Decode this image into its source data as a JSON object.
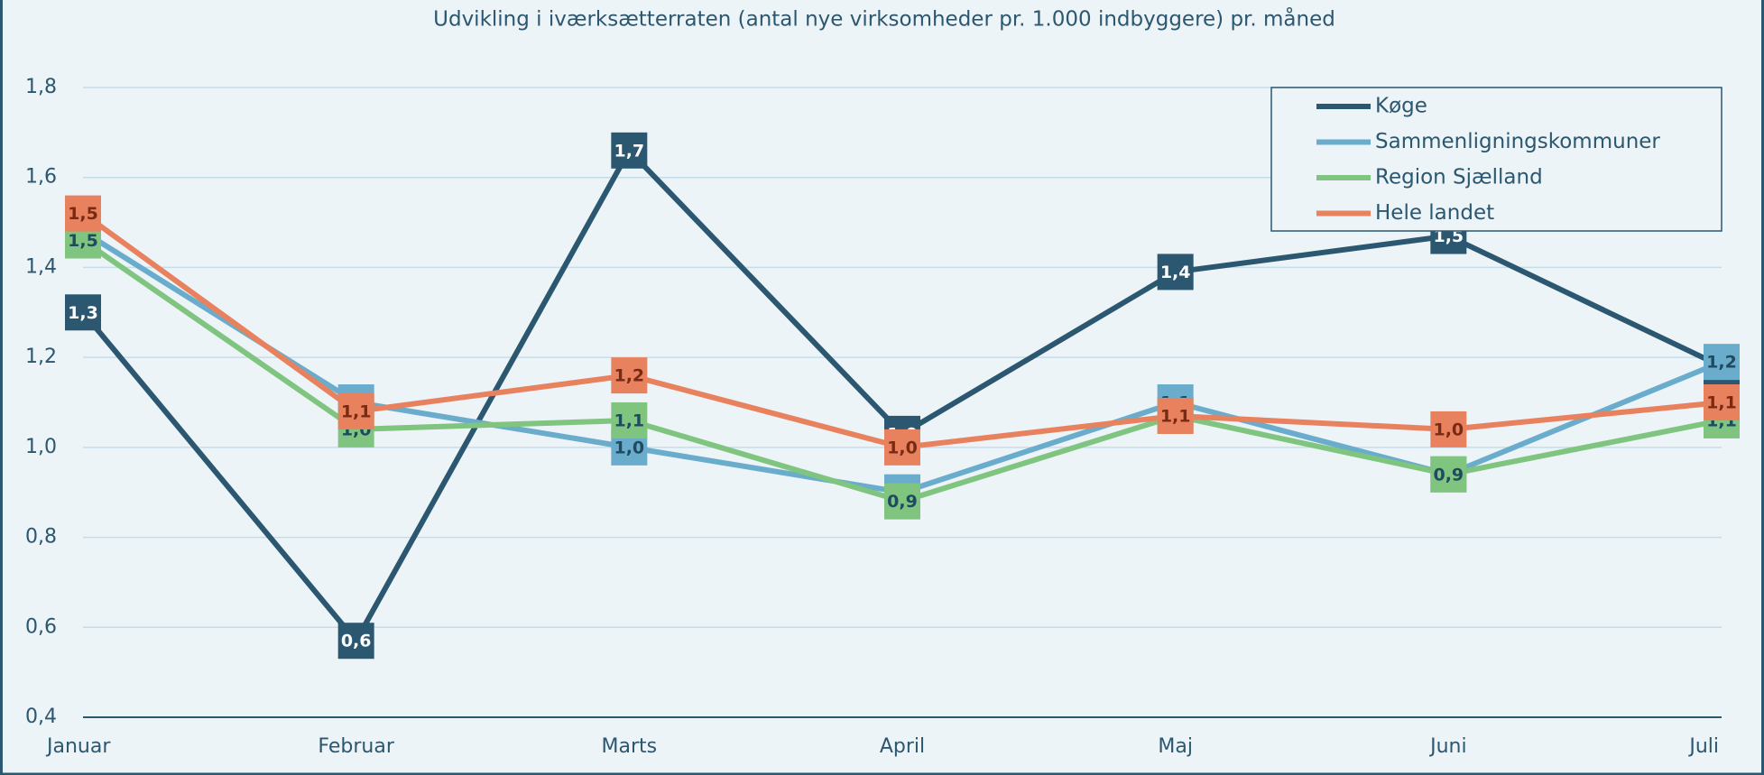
{
  "chart_data": {
    "type": "line",
    "title": "Udvikling i iværksætterraten (antal nye virksomheder pr. 1.000 indbyggere) pr. måned",
    "categories": [
      "Januar",
      "Februar",
      "Marts",
      "April",
      "Maj",
      "Juni",
      "Juli"
    ],
    "series": [
      {
        "name": "Køge",
        "color": "#2b5770",
        "values": [
          1.3,
          0.57,
          1.66,
          1.03,
          1.39,
          1.47,
          1.18
        ],
        "value_labels": [
          "1,3",
          "0,6",
          "1,7",
          "1,0",
          "1,4",
          "1,5",
          "1,2"
        ]
      },
      {
        "name": "Sammenligningskommuner",
        "color": "#6aaccc",
        "values": [
          1.48,
          1.1,
          1.0,
          0.9,
          1.1,
          0.94,
          1.19
        ],
        "value_labels": [
          "1,5",
          "1,1",
          "1,0",
          "0,9",
          "1,1",
          "0,9",
          "1,2"
        ]
      },
      {
        "name": "Region Sjælland",
        "color": "#7fc47f",
        "values": [
          1.46,
          1.04,
          1.06,
          0.88,
          1.07,
          0.94,
          1.06
        ],
        "value_labels": [
          "1,5",
          "1,0",
          "1,1",
          "0,9",
          "1,1",
          "0,9",
          "1,1"
        ]
      },
      {
        "name": "Hele landet",
        "color": "#e8825e",
        "values": [
          1.52,
          1.08,
          1.16,
          1.0,
          1.07,
          1.04,
          1.1
        ],
        "value_labels": [
          "1,5",
          "1,1",
          "1,2",
          "1,0",
          "1,1",
          "1,0",
          "1,1"
        ]
      }
    ],
    "ylim": [
      0.4,
      1.8
    ],
    "yticks": [
      {
        "value": 0.4,
        "label": "0,4"
      },
      {
        "value": 0.6,
        "label": "0,6"
      },
      {
        "value": 0.8,
        "label": "0,8"
      },
      {
        "value": 1.0,
        "label": "1,0"
      },
      {
        "value": 1.2,
        "label": "1,2"
      },
      {
        "value": 1.4,
        "label": "1,4"
      },
      {
        "value": 1.6,
        "label": "1,6"
      },
      {
        "value": 1.8,
        "label": "1,8"
      }
    ],
    "grid": true,
    "legend": "top-right"
  }
}
